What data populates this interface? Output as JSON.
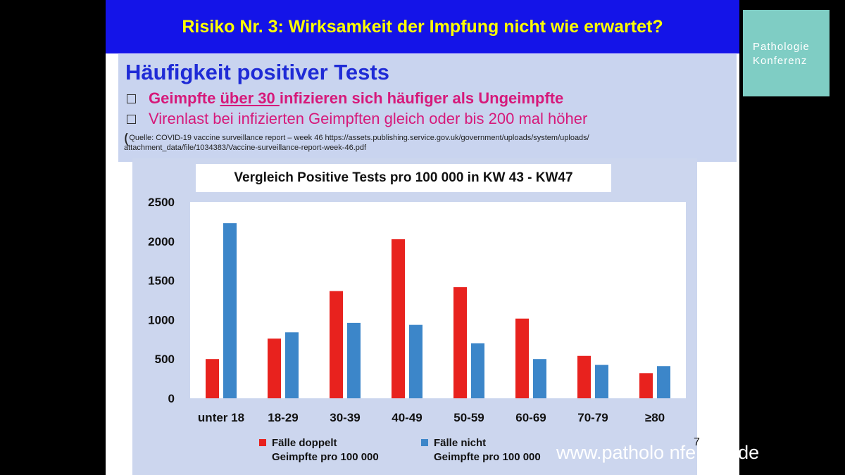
{
  "slide": {
    "title": "Risiko Nr. 3: Wirksamkeit der Impfung nicht wie erwartet?",
    "heading": "Häufigkeit positiver Tests",
    "bullet1_pre": "Geimpfte ",
    "bullet1_underline": "über 30 ",
    "bullet1_post": "infizieren sich häufiger als Ungeimpfte",
    "bullet2": "Virenlast bei infizierten Geimpften gleich oder bis 200 mal höher",
    "source_paren": "(",
    "source_line1": "Quelle: COVID-19 vaccine surveillance report – week 46 https://assets.publishing.service.gov.uk/government/uploads/system/uploads/",
    "source_line2": "attachment_data/file/1034383/Vaccine-surveillance-report-week-46.pdf",
    "page_number": "7"
  },
  "overlay": {
    "logo_line1": "Pathologie",
    "logo_line2": "Konferenz",
    "watermark": "www.patholo        nferenz.de"
  },
  "colors": {
    "vaccinated": "#e8221e",
    "unvaccinated": "#3c86c9"
  },
  "chart_data": {
    "type": "bar",
    "title": "Vergleich Positive Tests pro 100 000 in KW 43 - KW47",
    "categories": [
      "unter 18",
      "18-29",
      "30-39",
      "40-49",
      "50-59",
      "60-69",
      "70-79",
      "≥80"
    ],
    "series": [
      {
        "name": "Fälle doppelt Geimpfte pro 100 000",
        "legend_line1": "Fälle doppelt",
        "legend_line2": "Geimpfte pro 100 000",
        "values": [
          500,
          760,
          1365,
          2025,
          1415,
          1015,
          540,
          320
        ]
      },
      {
        "name": "Fälle nicht Geimpfte pro 100 000",
        "legend_line1": "Fälle nicht",
        "legend_line2": "Geimpfte pro 100 000",
        "values": [
          2230,
          840,
          960,
          935,
          700,
          500,
          425,
          410
        ]
      }
    ],
    "yticks": [
      0,
      500,
      1000,
      1500,
      2000,
      2500
    ],
    "ylim": [
      0,
      2500
    ],
    "grid": false,
    "legend": "bottom"
  }
}
